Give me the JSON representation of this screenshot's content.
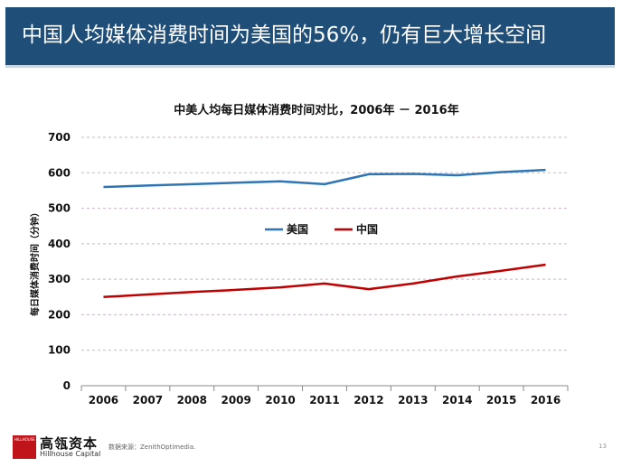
{
  "slide": {
    "title": "中国人均媒体消费时间为美国的56%，仍有巨大增长空间",
    "page_number": "13"
  },
  "footer": {
    "logo_text": "HILLHOUSE",
    "brand_cn": "高瓴资本",
    "brand_en": "Hillhouse Capital",
    "source": "数据来源：ZenithOptimedia."
  },
  "colors": {
    "header": "#1f4e79",
    "us_series": "#2e75b6",
    "cn_series": "#c00000",
    "grid": "#c8b5c8"
  },
  "chart_data": {
    "type": "line",
    "title": "中美人均每日媒体消费时间对比，2006年 － 2016年",
    "xlabel": "",
    "ylabel": "每日媒体消费时间（分钟）",
    "categories": [
      "2006",
      "2007",
      "2008",
      "2009",
      "2010",
      "2011",
      "2012",
      "2013",
      "2014",
      "2015",
      "2016"
    ],
    "ylim": [
      0,
      700
    ],
    "yticks": [
      0,
      100,
      200,
      300,
      400,
      500,
      600,
      700
    ],
    "grid": true,
    "legend_position": "center",
    "series": [
      {
        "name": "美国",
        "color": "#2e75b6",
        "values": [
          560,
          564,
          568,
          572,
          576,
          568,
          596,
          597,
          593,
          602,
          608
        ]
      },
      {
        "name": "中国",
        "color": "#c00000",
        "values": [
          250,
          257,
          264,
          270,
          277,
          288,
          272,
          288,
          308,
          324,
          341
        ]
      }
    ]
  }
}
